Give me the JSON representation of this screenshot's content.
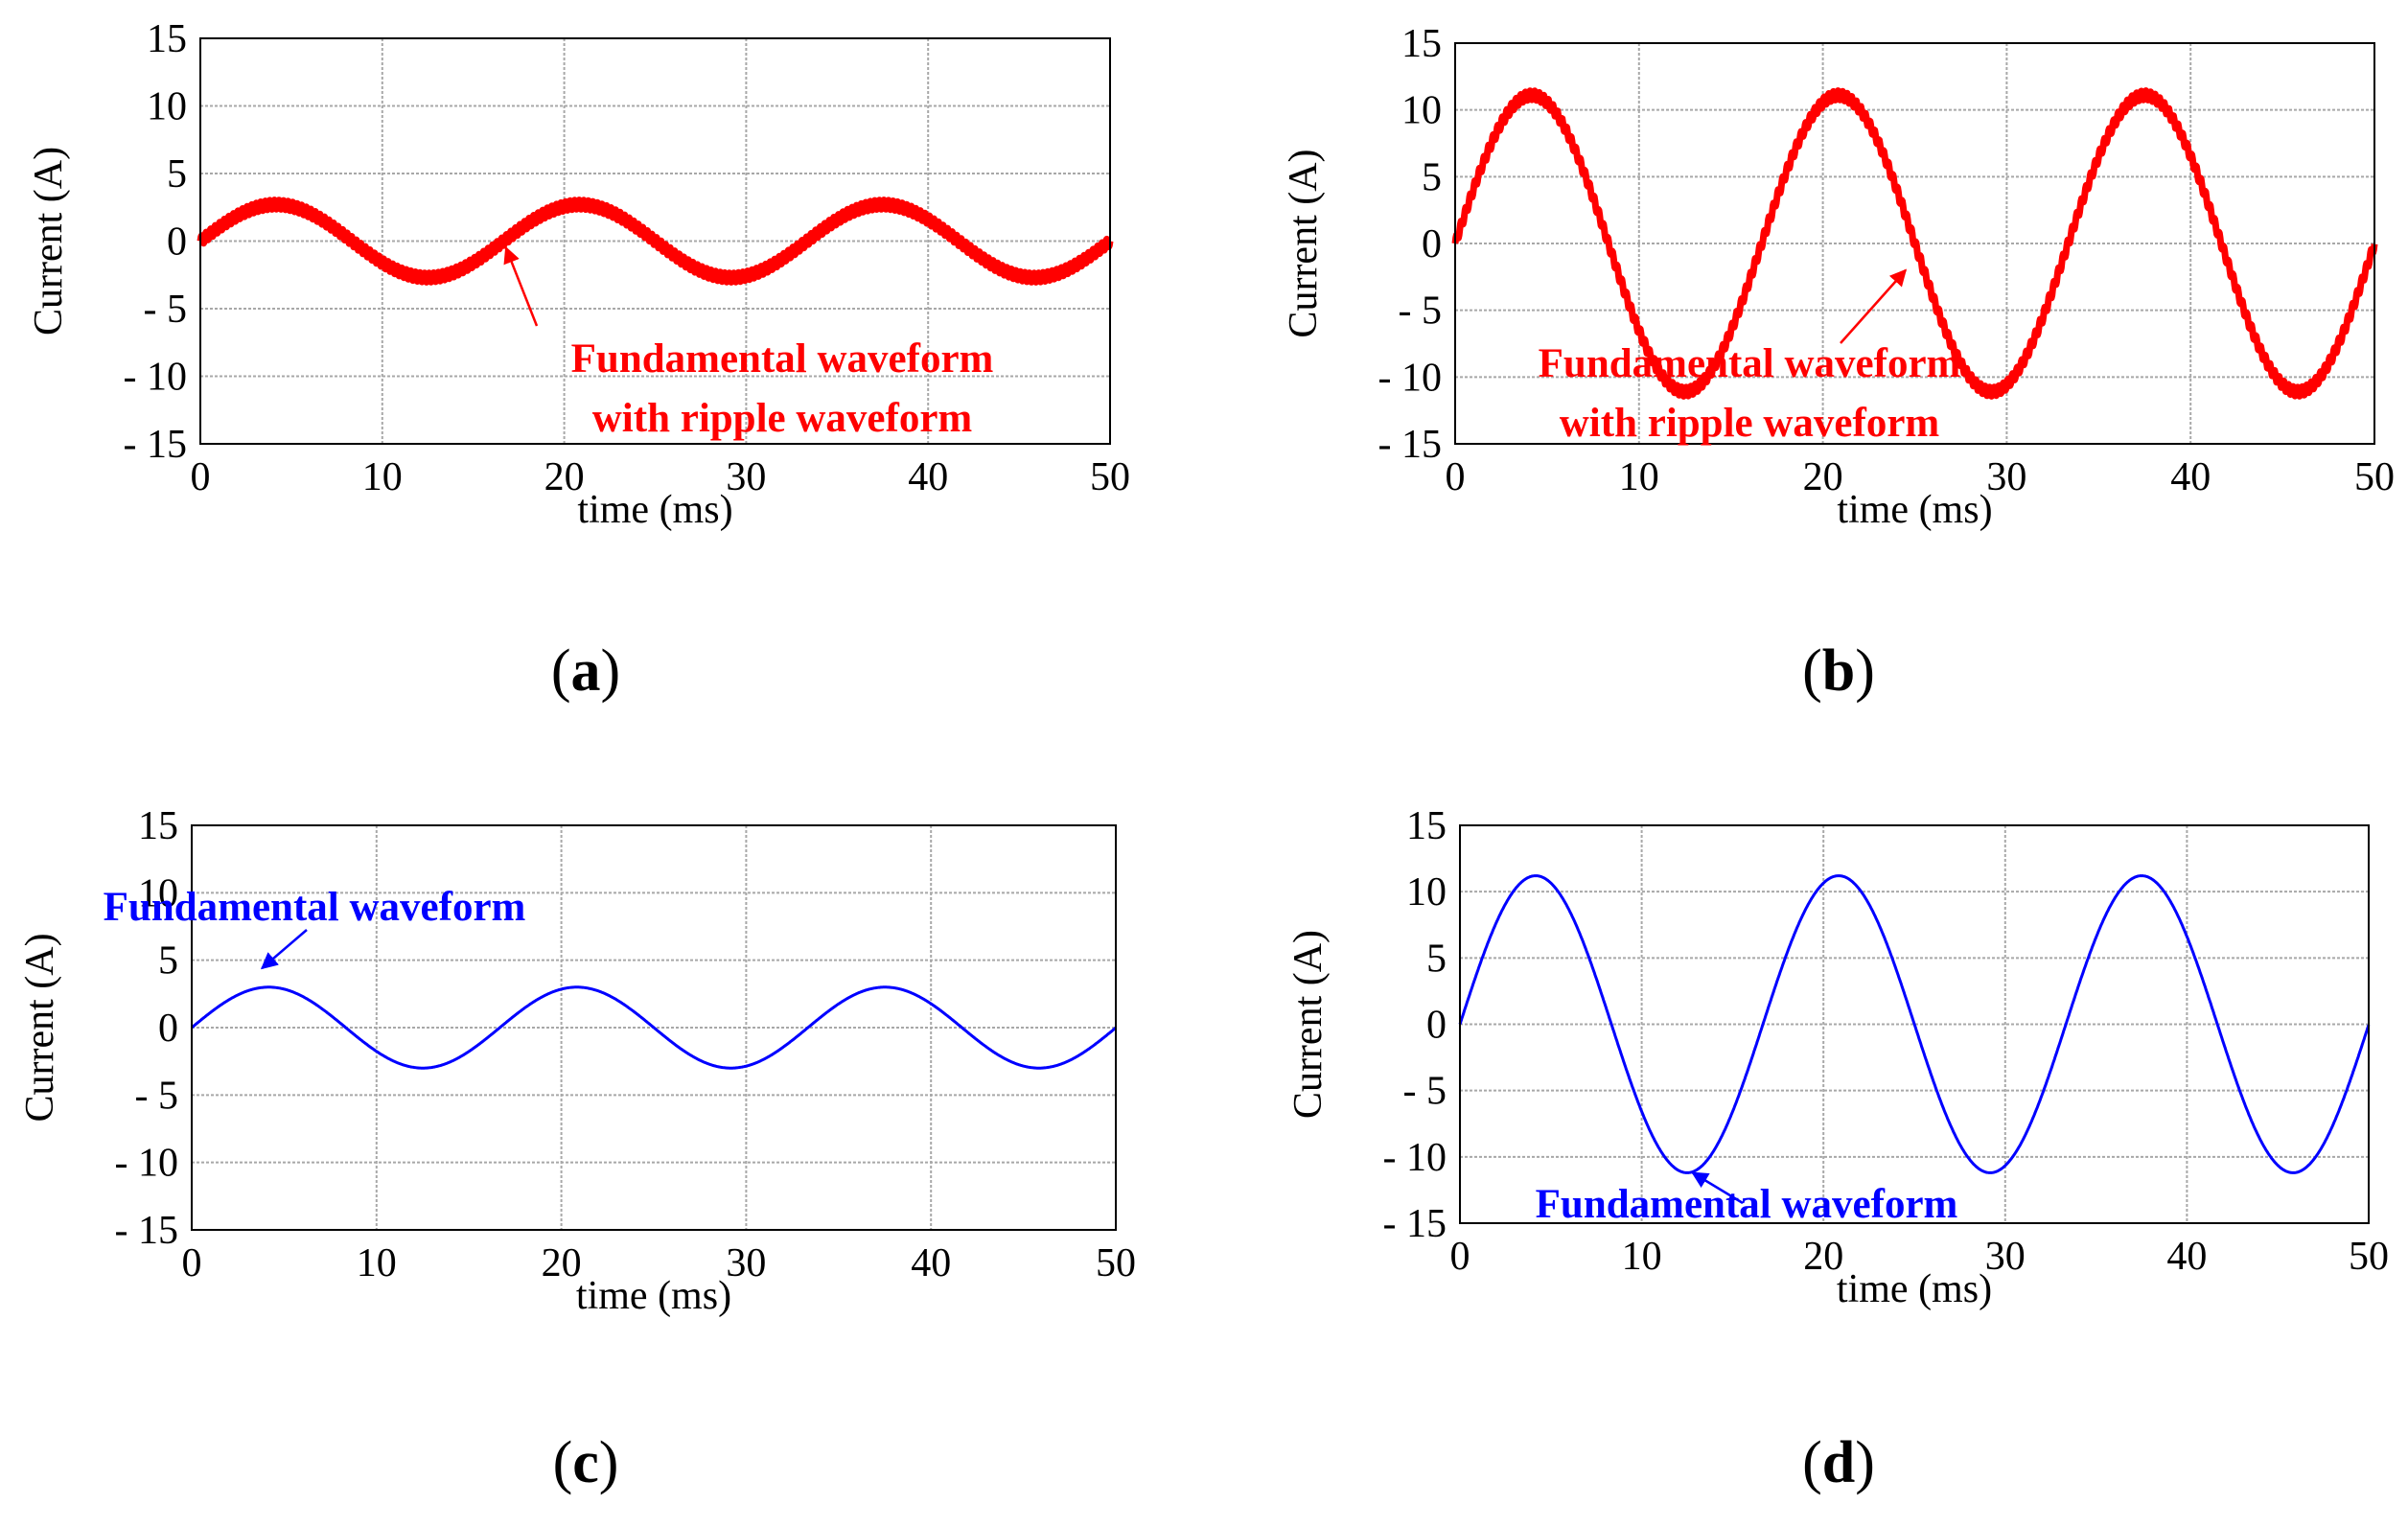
{
  "chart_data": [
    {
      "panel_label": "(a)",
      "type": "line",
      "xlabel": "time (ms)",
      "ylabel": "Current (A)",
      "xlim": [
        0,
        50
      ],
      "ylim": [
        -15,
        15
      ],
      "xticks": [
        "0",
        "10",
        "20",
        "30",
        "40",
        "50"
      ],
      "yticks": [
        "15",
        "10",
        "5",
        "0",
        "- 5",
        "- 10",
        "- 15"
      ],
      "grid": true,
      "series": [
        {
          "name": "Fundamental waveform with ripple waveform",
          "color": "#ff0000",
          "amplitude_A": 2.7,
          "period_ms": 16.67,
          "ripple_A": 0.35,
          "x_range": [
            0,
            50
          ]
        }
      ],
      "annotations": [
        {
          "lines": [
            "Fundamental waveform",
            "with ripple waveform"
          ],
          "color": "#ff0000",
          "arrow_to": [
            16.8,
            -0.5
          ]
        }
      ]
    },
    {
      "panel_label": "(b)",
      "type": "line",
      "xlabel": "time (ms)",
      "ylabel": "Current (A)",
      "xlim": [
        0,
        50
      ],
      "ylim": [
        -15,
        15
      ],
      "xticks": [
        "0",
        "10",
        "20",
        "30",
        "40",
        "50"
      ],
      "yticks": [
        "15",
        "10",
        "5",
        "0",
        "- 5",
        "- 10",
        "- 15"
      ],
      "grid": true,
      "series": [
        {
          "name": "Fundamental waveform with ripple waveform",
          "color": "#ff0000",
          "amplitude_A": 11.1,
          "period_ms": 16.67,
          "ripple_A": 0.35,
          "x_range": [
            0,
            50
          ]
        }
      ],
      "annotations": [
        {
          "lines": [
            "Fundamental waveform",
            "with ripple waveform"
          ],
          "color": "#ff0000",
          "arrow_to": [
            24.5,
            -2
          ]
        }
      ]
    },
    {
      "panel_label": "(c)",
      "type": "line",
      "xlabel": "time (ms)",
      "ylabel": "Current (A)",
      "xlim": [
        0,
        50
      ],
      "ylim": [
        -15,
        15
      ],
      "xticks": [
        "0",
        "10",
        "20",
        "30",
        "40",
        "50"
      ],
      "yticks": [
        "15",
        "10",
        "5",
        "0",
        "- 5",
        "- 10",
        "- 15"
      ],
      "grid": true,
      "series": [
        {
          "name": "Fundamental waveform",
          "color": "#0000ff",
          "amplitude_A": 3.0,
          "period_ms": 16.67,
          "ripple_A": 0,
          "x_range": [
            0,
            50
          ]
        }
      ],
      "annotations": [
        {
          "lines": [
            "Fundamental waveform"
          ],
          "color": "#0000ff",
          "arrow_to": [
            3.8,
            4.4
          ]
        }
      ]
    },
    {
      "panel_label": "(d)",
      "type": "line",
      "xlabel": "time (ms)",
      "ylabel": "Current (A)",
      "xlim": [
        0,
        50
      ],
      "ylim": [
        -15,
        15
      ],
      "xticks": [
        "0",
        "10",
        "20",
        "30",
        "40",
        "50"
      ],
      "yticks": [
        "15",
        "10",
        "5",
        "0",
        "- 5",
        "- 10",
        "- 15"
      ],
      "grid": true,
      "series": [
        {
          "name": "Fundamental waveform",
          "color": "#0000ff",
          "amplitude_A": 11.2,
          "period_ms": 16.67,
          "ripple_A": 0,
          "x_range": [
            0,
            50
          ]
        }
      ],
      "annotations": [
        {
          "lines": [
            "Fundamental waveform"
          ],
          "color": "#0000ff",
          "arrow_to": [
            12.8,
            -11.2
          ]
        }
      ]
    }
  ]
}
